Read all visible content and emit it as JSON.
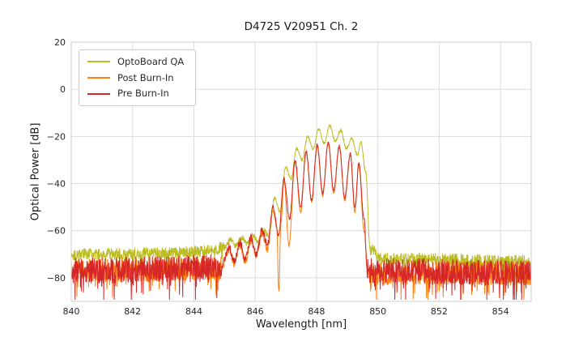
{
  "chart_data": {
    "type": "line",
    "title": "D4725 V20951 Ch. 2",
    "xlabel": "Wavelength [nm]",
    "ylabel": "Optical Power [dB]",
    "xlim": [
      840,
      855
    ],
    "ylim": [
      -90,
      20
    ],
    "xticks": [
      840,
      842,
      844,
      846,
      848,
      850,
      852,
      854
    ],
    "yticks": [
      20,
      0,
      -20,
      -40,
      -60,
      -80
    ],
    "grid": true,
    "legend_position": "upper left",
    "style": {
      "grid_color": "#dcdcdc",
      "spine_color": "#cccccc",
      "background": "#ffffff"
    },
    "series": [
      {
        "name": "OptoBoard QA",
        "color": "#bcbd22",
        "seed": 101,
        "envelope": [
          [
            840,
            -70
          ],
          [
            843,
            -69.5
          ],
          [
            844.5,
            -68.5
          ],
          [
            845.0,
            -67
          ],
          [
            845.19,
            -64
          ],
          [
            845.37,
            -66.5
          ],
          [
            845.55,
            -63
          ],
          [
            845.73,
            -65.5
          ],
          [
            845.91,
            -62
          ],
          [
            846.09,
            -64.5
          ],
          [
            846.27,
            -60
          ],
          [
            846.45,
            -62
          ],
          [
            846.63,
            -46
          ],
          [
            846.81,
            -52
          ],
          [
            846.99,
            -33
          ],
          [
            847.17,
            -38
          ],
          [
            847.35,
            -25
          ],
          [
            847.53,
            -30
          ],
          [
            847.71,
            -20
          ],
          [
            847.89,
            -25.5
          ],
          [
            848.07,
            -17
          ],
          [
            848.25,
            -23
          ],
          [
            848.43,
            -15.5
          ],
          [
            848.61,
            -22
          ],
          [
            848.79,
            -17.5
          ],
          [
            848.97,
            -25
          ],
          [
            849.15,
            -21
          ],
          [
            849.33,
            -28
          ],
          [
            849.45,
            -22.5
          ],
          [
            849.6,
            -35
          ],
          [
            849.75,
            -68
          ],
          [
            850.1,
            -72
          ],
          [
            855,
            -73
          ]
        ],
        "noise_regions": [
          [
            840,
            845.0,
            2.5
          ],
          [
            845.0,
            846.5,
            1.2
          ],
          [
            846.5,
            849.65,
            0.6
          ],
          [
            849.75,
            855,
            2.8
          ]
        ]
      },
      {
        "name": "Post Burn-In",
        "color": "#ff7f0e",
        "seed": 202,
        "envelope": [
          [
            840,
            -77
          ],
          [
            844.9,
            -76
          ],
          [
            845.14,
            -68
          ],
          [
            845.32,
            -74
          ],
          [
            845.5,
            -66
          ],
          [
            845.68,
            -73
          ],
          [
            845.86,
            -64
          ],
          [
            846.04,
            -71
          ],
          [
            846.22,
            -61
          ],
          [
            846.4,
            -68
          ],
          [
            846.58,
            -51
          ],
          [
            846.7,
            -58
          ],
          [
            846.77,
            -86
          ],
          [
            846.84,
            -56
          ],
          [
            846.94,
            -39
          ],
          [
            847.1,
            -66
          ],
          [
            847.3,
            -31
          ],
          [
            847.48,
            -52
          ],
          [
            847.66,
            -27
          ],
          [
            847.84,
            -48
          ],
          [
            848.02,
            -24
          ],
          [
            848.2,
            -45
          ],
          [
            848.38,
            -23
          ],
          [
            848.56,
            -44
          ],
          [
            848.74,
            -24.5
          ],
          [
            848.92,
            -47
          ],
          [
            849.1,
            -28
          ],
          [
            849.25,
            -52
          ],
          [
            849.38,
            -32
          ],
          [
            849.55,
            -60
          ],
          [
            849.68,
            -78
          ],
          [
            855,
            -78
          ]
        ],
        "noise_regions": [
          [
            840,
            844.9,
            5
          ],
          [
            844.9,
            846.5,
            1.6
          ],
          [
            846.5,
            849.6,
            0.7
          ],
          [
            849.7,
            855,
            5
          ]
        ]
      },
      {
        "name": "Pre Burn-In",
        "color": "#d62728",
        "seed": 303,
        "envelope": [
          [
            840,
            -77
          ],
          [
            844.9,
            -75.5
          ],
          [
            845.14,
            -67
          ],
          [
            845.32,
            -73
          ],
          [
            845.5,
            -65
          ],
          [
            845.68,
            -72
          ],
          [
            845.86,
            -63
          ],
          [
            846.04,
            -70
          ],
          [
            846.22,
            -60
          ],
          [
            846.4,
            -66
          ],
          [
            846.58,
            -50
          ],
          [
            846.76,
            -62
          ],
          [
            846.94,
            -38
          ],
          [
            847.12,
            -55
          ],
          [
            847.3,
            -30
          ],
          [
            847.48,
            -50
          ],
          [
            847.66,
            -26
          ],
          [
            847.84,
            -47
          ],
          [
            848.02,
            -23.5
          ],
          [
            848.2,
            -44
          ],
          [
            848.38,
            -22.5
          ],
          [
            848.56,
            -43
          ],
          [
            848.74,
            -24
          ],
          [
            848.92,
            -46
          ],
          [
            849.1,
            -27.5
          ],
          [
            849.25,
            -50
          ],
          [
            849.38,
            -31.5
          ],
          [
            849.55,
            -55
          ],
          [
            849.65,
            -77
          ],
          [
            855,
            -78
          ]
        ],
        "noise_regions": [
          [
            840,
            844.9,
            5.5
          ],
          [
            844.9,
            846.5,
            1.7
          ],
          [
            846.5,
            849.6,
            0.7
          ],
          [
            849.65,
            855,
            5.5
          ]
        ]
      }
    ]
  }
}
